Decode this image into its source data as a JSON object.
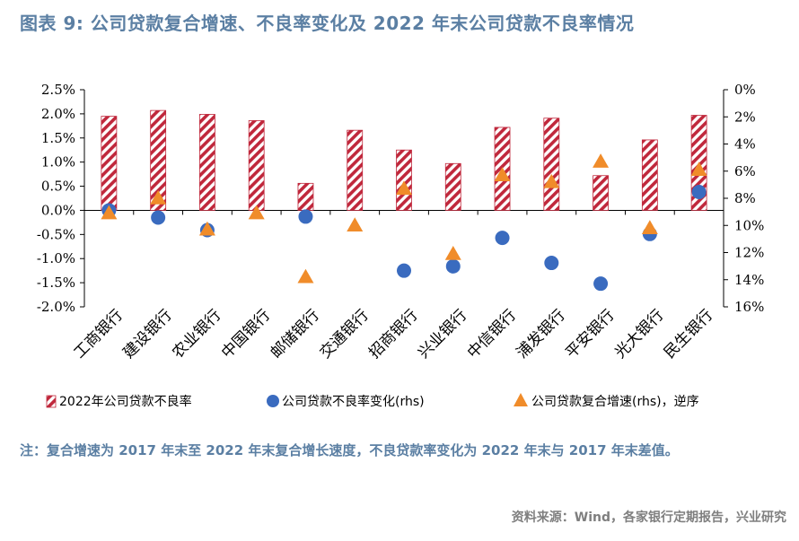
{
  "title": "图表 9:  公司贷款复合增速、不良率变化及 2022 年末公司贷款不良率情况",
  "note": "注：复合增速为 2017 年末至 2022 年末复合增长速度，不良贷款率变化为 2022 年末与 2017 年末差值。",
  "source": "资料来源：Wind，各家银行定期报告，兴业研究",
  "colors": {
    "bar": "#c0283c",
    "dot": "#3a6bbf",
    "triangle": "#f08c2a",
    "title": "#5b7fa3"
  },
  "chart_data": {
    "type": "bar",
    "categories": [
      "工商银行",
      "建设银行",
      "农业银行",
      "中国银行",
      "邮储银行",
      "交通银行",
      "招商银行",
      "兴业银行",
      "中信银行",
      "浦发银行",
      "平安银行",
      "光大银行",
      "民生银行"
    ],
    "series": [
      {
        "name": "2022年公司贷款不良率",
        "type": "bar",
        "axis": "left",
        "marker": "hatched-bar",
        "values": [
          1.95,
          2.07,
          1.99,
          1.86,
          0.56,
          1.66,
          1.25,
          0.97,
          1.72,
          1.91,
          0.72,
          1.46,
          1.97
        ]
      },
      {
        "name": "公司贷款不良率变化(rhs)",
        "type": "scatter",
        "axis": "left",
        "marker": "circle",
        "values": [
          0.0,
          -0.15,
          -0.41,
          null,
          -0.13,
          null,
          -1.25,
          -1.16,
          -0.57,
          -1.09,
          -1.52,
          -0.49,
          0.38
        ]
      },
      {
        "name": "公司贷款复合增速(rhs)，逆序",
        "type": "scatter",
        "axis": "right",
        "marker": "triangle",
        "values": [
          9.1,
          8.0,
          10.3,
          9.1,
          13.8,
          10.0,
          7.3,
          12.1,
          6.3,
          6.8,
          5.3,
          10.2,
          5.9
        ]
      }
    ],
    "y_left": {
      "min": -2.0,
      "max": 2.5,
      "step": 0.5,
      "ticks": [
        "-2.0%",
        "-1.5%",
        "-1.0%",
        "-0.5%",
        "0.0%",
        "0.5%",
        "1.0%",
        "1.5%",
        "2.0%",
        "2.5%"
      ]
    },
    "y_right": {
      "min": 0,
      "max": 16,
      "step": 2,
      "reversed": true,
      "ticks": [
        "0%",
        "2%",
        "4%",
        "6%",
        "8%",
        "10%",
        "12%",
        "14%",
        "16%"
      ]
    },
    "grid": false,
    "legend_position": "bottom"
  }
}
